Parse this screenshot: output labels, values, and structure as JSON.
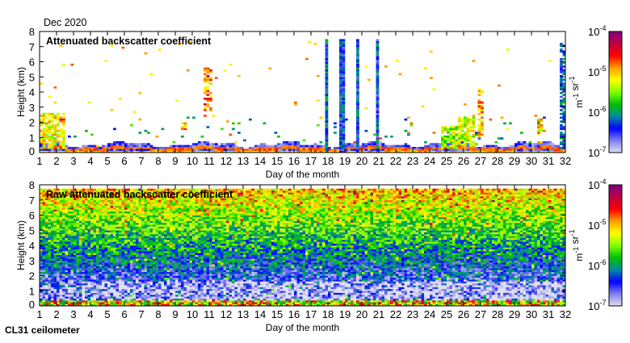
{
  "header": {
    "period": "Dec 2020",
    "instrument": "CL31 ceilometer"
  },
  "chart_data": [
    {
      "type": "heatmap",
      "title": "Attenuated backscatter coefficient",
      "xlabel": "Day of the month",
      "ylabel": "Height (km)",
      "xlim": [
        1,
        32
      ],
      "ylim": [
        0,
        8
      ],
      "xticks": [
        "1",
        "2",
        "3",
        "4",
        "5",
        "6",
        "7",
        "8",
        "9",
        "10",
        "11",
        "12",
        "13",
        "14",
        "15",
        "16",
        "17",
        "18",
        "19",
        "20",
        "21",
        "22",
        "23",
        "24",
        "25",
        "26",
        "27",
        "28",
        "29",
        "30",
        "31",
        "32"
      ],
      "yticks": [
        "0",
        "1",
        "2",
        "3",
        "4",
        "5",
        "6",
        "7",
        "8"
      ],
      "colorbar": {
        "scale": "log",
        "range": [
          1e-07,
          0.0001
        ],
        "ticks": [
          {
            "base": "10",
            "exp": "-7"
          },
          {
            "base": "10",
            "exp": "-6"
          },
          {
            "base": "10",
            "exp": "-5"
          },
          {
            "base": "10",
            "exp": "-4"
          }
        ],
        "unit_base": [
          "m",
          "sr"
        ],
        "unit_exp": [
          "-1",
          "-1"
        ]
      },
      "features": [
        {
          "kind": "boundary_layer",
          "top_km": 0.7,
          "log10_value": -6.6
        },
        {
          "kind": "cloud",
          "days": [
            1.0,
            2.5
          ],
          "height_km": [
            0.2,
            2.6
          ],
          "log10_value": -5.2
        },
        {
          "kind": "cloud",
          "days": [
            2.2,
            2.5
          ],
          "height_km": [
            1.9,
            2.3
          ],
          "log10_value": -4.8
        },
        {
          "kind": "cloud",
          "days": [
            9.3,
            9.6
          ],
          "height_km": [
            1.5,
            2.0
          ],
          "log10_value": -5.0
        },
        {
          "kind": "cloud",
          "days": [
            10.6,
            11.1
          ],
          "height_km": [
            2.7,
            5.6
          ],
          "log10_value": -4.9
        },
        {
          "kind": "precipitation",
          "days": [
            17.9,
            18.0
          ],
          "height_km": [
            0,
            7.5
          ],
          "log10_value": -6.2
        },
        {
          "kind": "precipitation",
          "days": [
            18.7,
            19.0
          ],
          "height_km": [
            0,
            7.5
          ],
          "log10_value": -6.3
        },
        {
          "kind": "precipitation",
          "days": [
            19.6,
            19.9
          ],
          "height_km": [
            0,
            7.5
          ],
          "log10_value": -6.3
        },
        {
          "kind": "precipitation",
          "days": [
            20.9,
            21.0
          ],
          "height_km": [
            0,
            7.5
          ],
          "log10_value": -6.3
        },
        {
          "kind": "cloud",
          "days": [
            24.7,
            25.6
          ],
          "height_km": [
            0.3,
            1.8
          ],
          "log10_value": -5.4
        },
        {
          "kind": "cloud",
          "days": [
            25.7,
            26.6
          ],
          "height_km": [
            0.4,
            2.4
          ],
          "log10_value": -5.3
        },
        {
          "kind": "cloud",
          "days": [
            26.8,
            27.2
          ],
          "height_km": [
            1.0,
            4.2
          ],
          "log10_value": -5.0
        },
        {
          "kind": "cloud",
          "days": [
            30.3,
            30.7
          ],
          "height_km": [
            0.5,
            2.2
          ],
          "log10_value": -5.1
        },
        {
          "kind": "cloud",
          "days": [
            31.6,
            32.0
          ],
          "height_km": [
            0.3,
            7.3
          ],
          "log10_value": -6.2
        }
      ]
    },
    {
      "type": "heatmap",
      "title": "Raw attenuated backscatter coefficient",
      "xlabel": "Day of the month",
      "ylabel": "Height (km)",
      "xlim": [
        1,
        32
      ],
      "ylim": [
        0,
        8
      ],
      "xticks": [
        "1",
        "2",
        "3",
        "4",
        "5",
        "6",
        "7",
        "8",
        "9",
        "10",
        "11",
        "12",
        "13",
        "14",
        "15",
        "16",
        "17",
        "18",
        "19",
        "20",
        "21",
        "22",
        "23",
        "24",
        "25",
        "26",
        "27",
        "28",
        "29",
        "30",
        "31",
        "32"
      ],
      "yticks": [
        "0",
        "1",
        "2",
        "3",
        "4",
        "5",
        "6",
        "7",
        "8"
      ],
      "colorbar": {
        "scale": "log",
        "range": [
          1e-07,
          0.0001
        ],
        "ticks": [
          {
            "base": "10",
            "exp": "-7"
          },
          {
            "base": "10",
            "exp": "-6"
          },
          {
            "base": "10",
            "exp": "-5"
          },
          {
            "base": "10",
            "exp": "-4"
          }
        ],
        "unit_base": [
          "m",
          "sr"
        ],
        "unit_exp": [
          "-1",
          "-1"
        ]
      },
      "features": [
        {
          "kind": "noise_gradient",
          "height_km": [
            0,
            7.7
          ],
          "log10_value_range": [
            -6.9,
            -5.0
          ]
        },
        {
          "kind": "surface_layer",
          "top_km": 0.35,
          "log10_value": -5.2
        }
      ]
    }
  ],
  "colors": {
    "low": "#e0e0f0",
    "blue": "#0000ff",
    "green": "#00c000",
    "yellow": "#ffff00",
    "red": "#ff0000",
    "high": "#800080"
  }
}
